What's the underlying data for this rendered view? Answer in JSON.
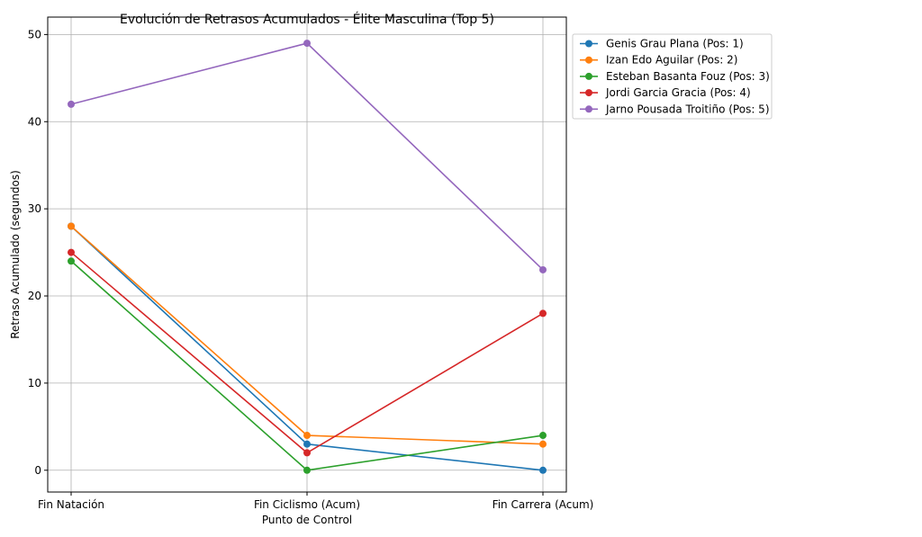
{
  "chart_data": {
    "type": "line",
    "title": "Evolución de Retrasos Acumulados - Élite Masculina (Top 5)",
    "xlabel": "Punto de Control",
    "ylabel": "Retraso Acumulado (segundos)",
    "categories": [
      "Fin Natación",
      "Fin Ciclismo (Acum)",
      "Fin Carrera (Acum)"
    ],
    "ylim": [
      -2.5,
      52
    ],
    "yticks": [
      0,
      10,
      20,
      30,
      40,
      50
    ],
    "grid": true,
    "legend_position": "outside right, top",
    "series": [
      {
        "name": "Genis Grau Plana (Pos: 1)",
        "color": "#1f77b4",
        "values": [
          28,
          3,
          0
        ]
      },
      {
        "name": "Izan Edo Aguilar (Pos: 2)",
        "color": "#ff7f0e",
        "values": [
          28,
          4,
          3
        ]
      },
      {
        "name": "Esteban Basanta Fouz (Pos: 3)",
        "color": "#2ca02c",
        "values": [
          24,
          0,
          4
        ]
      },
      {
        "name": "Jordi Garcia Gracia (Pos: 4)",
        "color": "#d62728",
        "values": [
          25,
          2,
          18
        ]
      },
      {
        "name": "Jarno Pousada Troitiño (Pos: 5)",
        "color": "#9467bd",
        "values": [
          42,
          49,
          23
        ]
      }
    ]
  }
}
